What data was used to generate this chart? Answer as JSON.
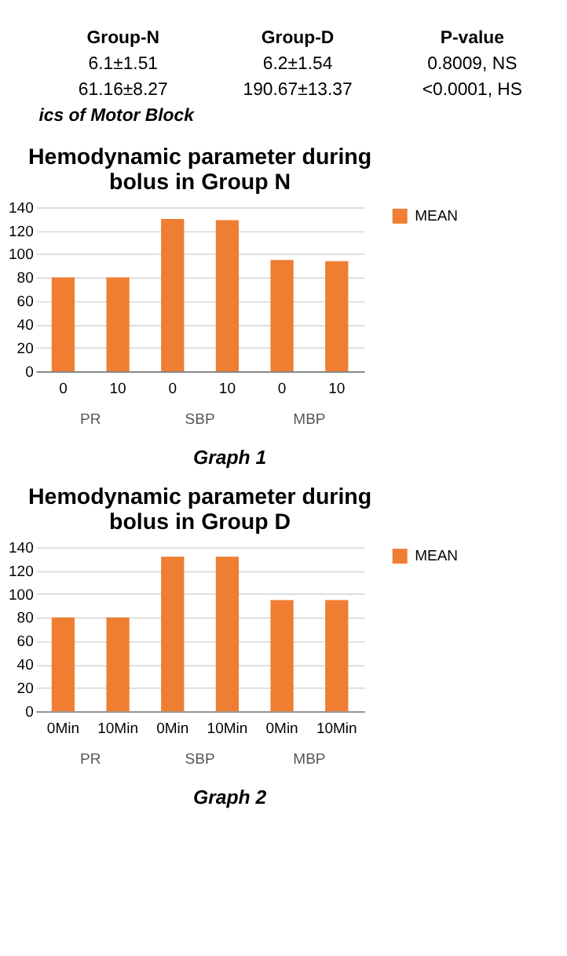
{
  "chart_data": [
    {
      "type": "other",
      "annotations": [
        "Group-N",
        "Group-D",
        "P-value",
        "6.1±1.51",
        "6.2±1.54",
        "0.8009, NS",
        "61.16±8.27",
        "190.67±13.37",
        "<0.0001, HS",
        "ics of Motor Block"
      ]
    },
    {
      "type": "bar",
      "title": "Hemodynamic parameter during bolus in Group N",
      "categories": [
        "0",
        "10",
        "0",
        "10",
        "0",
        "10"
      ],
      "series": [
        {
          "name": "MEAN",
          "color": "#ef7d32",
          "values": [
            80,
            80,
            130,
            129,
            95,
            94
          ]
        }
      ],
      "ylim": [
        0,
        140
      ],
      "yticks": [
        0,
        20,
        40,
        60,
        80,
        100,
        120,
        140
      ],
      "grid": "y",
      "legend": "right",
      "annotations": [
        "PR",
        "SBP",
        "MBP",
        "Graph 1"
      ]
    },
    {
      "type": "bar",
      "title": "Hemodynamic parameter during bolus in Group D",
      "categories": [
        "0Min",
        "10Min",
        "0Min",
        "10Min",
        "0Min",
        "10Min"
      ],
      "series": [
        {
          "name": "MEAN",
          "color": "#ef7d32",
          "values": [
            80,
            80,
            132,
            132,
            95,
            95
          ]
        }
      ],
      "ylim": [
        0,
        140
      ],
      "yticks": [
        0,
        20,
        40,
        60,
        80,
        100,
        120,
        140
      ],
      "grid": "y",
      "legend": "right",
      "annotations": [
        "PR",
        "SBP",
        "MBP",
        "Graph 2"
      ]
    }
  ]
}
